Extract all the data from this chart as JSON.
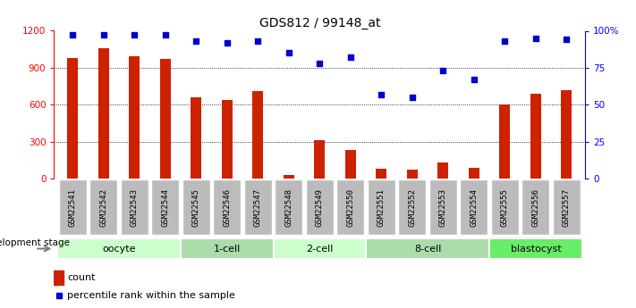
{
  "title": "GDS812 / 99148_at",
  "samples": [
    "GSM22541",
    "GSM22542",
    "GSM22543",
    "GSM22544",
    "GSM22545",
    "GSM22546",
    "GSM22547",
    "GSM22548",
    "GSM22549",
    "GSM22550",
    "GSM22551",
    "GSM22552",
    "GSM22553",
    "GSM22554",
    "GSM22555",
    "GSM22556",
    "GSM22557"
  ],
  "counts": [
    980,
    1060,
    990,
    975,
    660,
    640,
    710,
    30,
    310,
    230,
    80,
    70,
    130,
    90,
    600,
    690,
    720
  ],
  "percentiles": [
    97,
    97,
    97,
    97,
    93,
    92,
    93,
    85,
    78,
    82,
    57,
    55,
    73,
    67,
    93,
    95,
    94
  ],
  "bar_color": "#cc2200",
  "dot_color": "#0000cc",
  "ylim_left": [
    0,
    1200
  ],
  "ylim_right": [
    0,
    100
  ],
  "yticks_left": [
    0,
    300,
    600,
    900,
    1200
  ],
  "yticks_right": [
    0,
    25,
    50,
    75,
    100
  ],
  "yticklabels_right": [
    "0",
    "25",
    "50",
    "75",
    "100%"
  ],
  "groups": [
    {
      "label": "oocyte",
      "start": 0,
      "end": 3,
      "color": "#ccffcc"
    },
    {
      "label": "1-cell",
      "start": 4,
      "end": 6,
      "color": "#aaddaa"
    },
    {
      "label": "2-cell",
      "start": 7,
      "end": 9,
      "color": "#ccffcc"
    },
    {
      "label": "8-cell",
      "start": 10,
      "end": 13,
      "color": "#aaddaa"
    },
    {
      "label": "blastocyst",
      "start": 14,
      "end": 16,
      "color": "#66ee66"
    }
  ],
  "legend_count_label": "count",
  "legend_percentile_label": "percentile rank within the sample",
  "dev_stage_label": "development stage",
  "bg_color": "#ffffff",
  "bar_width": 0.35,
  "tick_bg_color": "#bbbbbb"
}
